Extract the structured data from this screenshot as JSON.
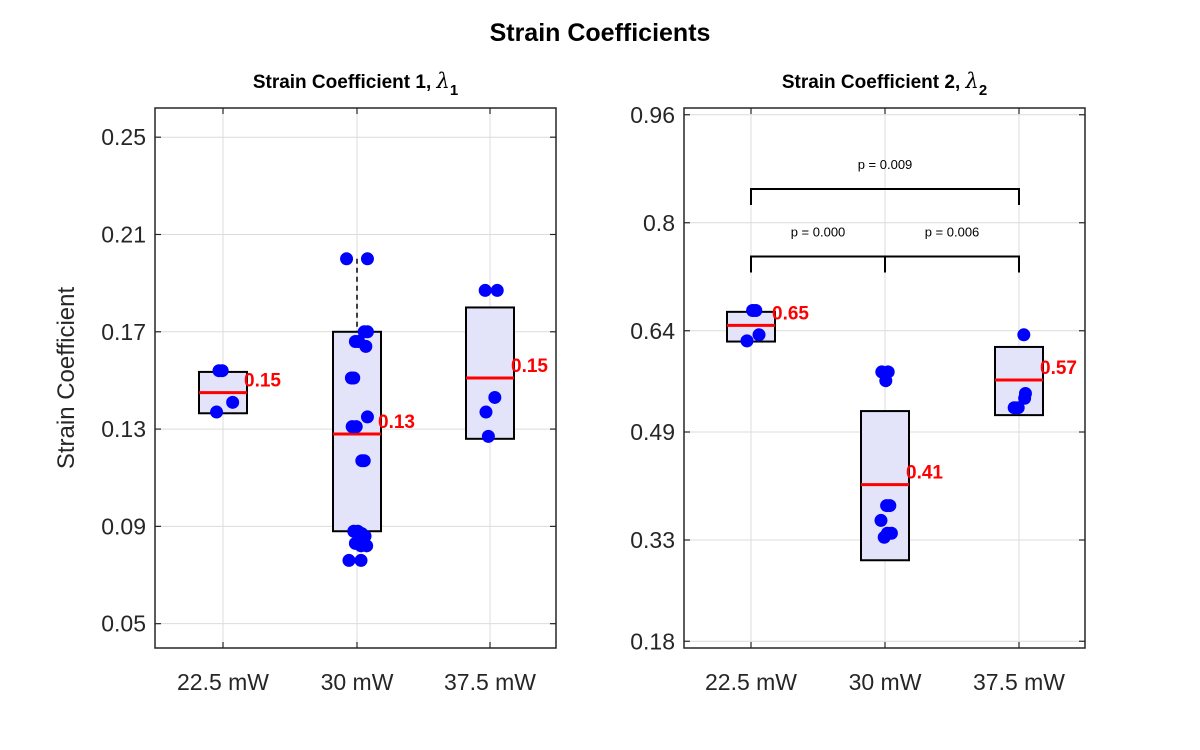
{
  "figure_title": "Strain Coefficients",
  "y_axis_label": "Strain Coefficient",
  "colors": {
    "box_fill": "#e3e3fa",
    "box_edge": "#000000",
    "median": "#ff0000",
    "points": "#0000ff",
    "grid": "#dcdcdc",
    "median_label": "#ff0000"
  },
  "chart_data": [
    {
      "type": "box",
      "title": "Strain Coefficient 1, ",
      "title_symbol": "λ",
      "title_subscript": "1",
      "categories": [
        "22.5 mW",
        "30 mW",
        "37.5 mW"
      ],
      "ylim": [
        0.04,
        0.262
      ],
      "yticks": [
        0.05,
        0.09,
        0.13,
        0.17,
        0.21,
        0.25
      ],
      "ytick_labels": [
        "0.05",
        "0.09",
        "0.13",
        "0.17",
        "0.21",
        "0.25"
      ],
      "grid": true,
      "boxes": [
        {
          "category": "22.5 mW",
          "q1": 0.1365,
          "median": 0.145,
          "q3": 0.1535,
          "whisker_low": 0.1365,
          "whisker_high": 0.1535,
          "median_label": "0.15"
        },
        {
          "category": "30 mW",
          "q1": 0.088,
          "median": 0.128,
          "q3": 0.17,
          "whisker_low": 0.088,
          "whisker_high": 0.2,
          "median_label": "0.13"
        },
        {
          "category": "37.5 mW",
          "q1": 0.126,
          "median": 0.151,
          "q3": 0.18,
          "whisker_low": 0.126,
          "whisker_high": 0.18,
          "median_label": "0.15"
        }
      ],
      "points": [
        {
          "category": "22.5 mW",
          "values": [
            0.154,
            0.154,
            0.141,
            0.137
          ],
          "offsets": [
            -0.05,
            -0.01,
            0.12,
            -0.08
          ]
        },
        {
          "category": "30 mW",
          "values": [
            0.2,
            0.2,
            0.17,
            0.17,
            0.166,
            0.166,
            0.164,
            0.151,
            0.151,
            0.135,
            0.131,
            0.131,
            0.117,
            0.117,
            0.088,
            0.088,
            0.087,
            0.086,
            0.083,
            0.082,
            0.082,
            0.076,
            0.076
          ],
          "offsets": [
            -0.13,
            0.13,
            0.09,
            0.13,
            -0.02,
            0.02,
            0.11,
            -0.07,
            -0.04,
            0.13,
            -0.06,
            -0.01,
            0.06,
            0.09,
            -0.04,
            0.01,
            0.06,
            0.1,
            -0.02,
            0.05,
            0.12,
            -0.1,
            0.05
          ]
        },
        {
          "category": "37.5 mW",
          "values": [
            0.187,
            0.187,
            0.143,
            0.137,
            0.127
          ],
          "offsets": [
            -0.06,
            0.09,
            0.06,
            -0.05,
            -0.02
          ]
        }
      ]
    },
    {
      "type": "box",
      "title": "Strain Coefficient 2, ",
      "title_symbol": "λ",
      "title_subscript": "2",
      "categories": [
        "22.5 mW",
        "30 mW",
        "37.5 mW"
      ],
      "ylim": [
        0.17,
        0.97
      ],
      "yticks": [
        0.18,
        0.33,
        0.49,
        0.64,
        0.8,
        0.96
      ],
      "ytick_labels": [
        "0.18",
        "0.33",
        "0.49",
        "0.64",
        "0.8",
        "0.96"
      ],
      "grid": true,
      "boxes": [
        {
          "category": "22.5 mW",
          "q1": 0.624,
          "median": 0.648,
          "q3": 0.668,
          "whisker_low": 0.624,
          "whisker_high": 0.668,
          "median_label": "0.65"
        },
        {
          "category": "30 mW",
          "q1": 0.3,
          "median": 0.412,
          "q3": 0.521,
          "whisker_low": 0.3,
          "whisker_high": 0.521,
          "median_label": "0.41"
        },
        {
          "category": "37.5 mW",
          "q1": 0.515,
          "median": 0.567,
          "q3": 0.616,
          "whisker_low": 0.515,
          "whisker_high": 0.616,
          "median_label": "0.57"
        }
      ],
      "points": [
        {
          "category": "22.5 mW",
          "values": [
            0.67,
            0.67,
            0.634,
            0.625
          ],
          "offsets": [
            0.02,
            0.06,
            0.1,
            -0.05
          ]
        },
        {
          "category": "30 mW",
          "values": [
            0.579,
            0.579,
            0.566,
            0.381,
            0.381,
            0.359,
            0.34,
            0.34,
            0.334
          ],
          "offsets": [
            -0.04,
            0.04,
            0.01,
            0.02,
            0.06,
            -0.05,
            0.03,
            0.08,
            -0.01
          ]
        },
        {
          "category": "37.5 mW",
          "values": [
            0.634,
            0.547,
            0.54,
            0.526,
            0.526
          ],
          "offsets": [
            0.06,
            0.08,
            0.07,
            -0.06,
            -0.01
          ]
        }
      ],
      "significance": [
        {
          "from": "22.5 mW",
          "to": "30 mW",
          "label": "p = 0.000",
          "y": 0.75
        },
        {
          "from": "30 mW",
          "to": "37.5 mW",
          "label": "p = 0.006",
          "y": 0.75
        },
        {
          "from": "22.5 mW",
          "to": "37.5 mW",
          "label": "p = 0.009",
          "y": 0.85
        }
      ]
    }
  ]
}
